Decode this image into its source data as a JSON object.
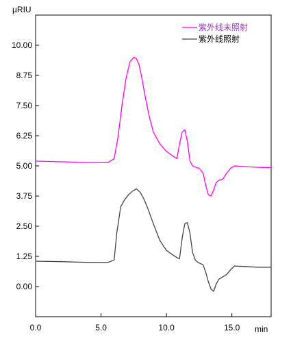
{
  "chart_data": {
    "type": "line",
    "y_unit_label": "µRIU",
    "x_unit_label": "min",
    "xlim": [
      0,
      18.0
    ],
    "ylim": [
      -1.25,
      11.25
    ],
    "x_ticks": [
      0.0,
      5.0,
      10.0,
      15.0
    ],
    "x_tick_labels": [
      "0.0",
      "5.0",
      "10.0",
      "15.0"
    ],
    "y_ticks": [
      0.0,
      1.25,
      2.5,
      3.75,
      5.0,
      6.25,
      7.5,
      8.75,
      10.0
    ],
    "y_tick_labels": [
      "0.00",
      "1.25",
      "2.50",
      "3.75",
      "5.00",
      "6.25",
      "7.50",
      "8.75",
      "10.00"
    ],
    "grid": false,
    "legend_position": "top-right",
    "series": [
      {
        "name": "紫外线未照射",
        "color": "#ff00ff",
        "x": [
          0.0,
          2.0,
          4.0,
          5.5,
          6.0,
          6.3,
          6.6,
          6.9,
          7.2,
          7.5,
          7.7,
          7.9,
          8.1,
          8.4,
          8.7,
          9.0,
          9.5,
          10.0,
          10.5,
          10.8,
          11.0,
          11.2,
          11.4,
          11.6,
          11.8,
          12.0,
          12.2,
          12.5,
          12.8,
          13.0,
          13.2,
          13.4,
          13.6,
          13.8,
          14.0,
          14.3,
          14.6,
          14.9,
          15.2,
          16.0,
          17.0,
          18.0
        ],
        "y": [
          5.2,
          5.17,
          5.14,
          5.13,
          5.3,
          6.2,
          7.5,
          8.6,
          9.3,
          9.5,
          9.45,
          9.2,
          8.7,
          7.8,
          7.0,
          6.4,
          5.9,
          5.6,
          5.4,
          5.3,
          5.9,
          6.4,
          6.5,
          6.0,
          5.2,
          5.0,
          4.95,
          4.9,
          4.7,
          4.2,
          3.8,
          3.75,
          4.0,
          4.3,
          4.4,
          4.45,
          4.7,
          4.9,
          5.0,
          4.97,
          4.94,
          4.93
        ]
      },
      {
        "name": "紫外线照射",
        "color": "#444444",
        "x": [
          0.0,
          2.0,
          4.0,
          5.5,
          6.0,
          6.2,
          6.5,
          6.8,
          7.1,
          7.4,
          7.7,
          8.0,
          8.3,
          8.6,
          9.0,
          9.5,
          10.0,
          10.5,
          10.8,
          11.0,
          11.2,
          11.4,
          11.6,
          11.8,
          12.0,
          12.2,
          12.4,
          12.6,
          12.8,
          13.0,
          13.2,
          13.4,
          13.6,
          13.8,
          14.0,
          14.3,
          14.6,
          14.9,
          15.2,
          16.0,
          17.0,
          18.0
        ],
        "y": [
          1.05,
          1.03,
          1.0,
          0.99,
          1.1,
          2.2,
          3.3,
          3.6,
          3.8,
          3.95,
          4.05,
          3.9,
          3.6,
          3.2,
          2.6,
          1.9,
          1.5,
          1.3,
          1.2,
          1.15,
          2.0,
          2.6,
          2.65,
          2.2,
          1.4,
          1.1,
          1.0,
          0.95,
          0.9,
          0.6,
          0.2,
          -0.1,
          -0.2,
          0.1,
          0.3,
          0.4,
          0.5,
          0.7,
          0.85,
          0.83,
          0.8,
          0.8
        ]
      }
    ]
  }
}
